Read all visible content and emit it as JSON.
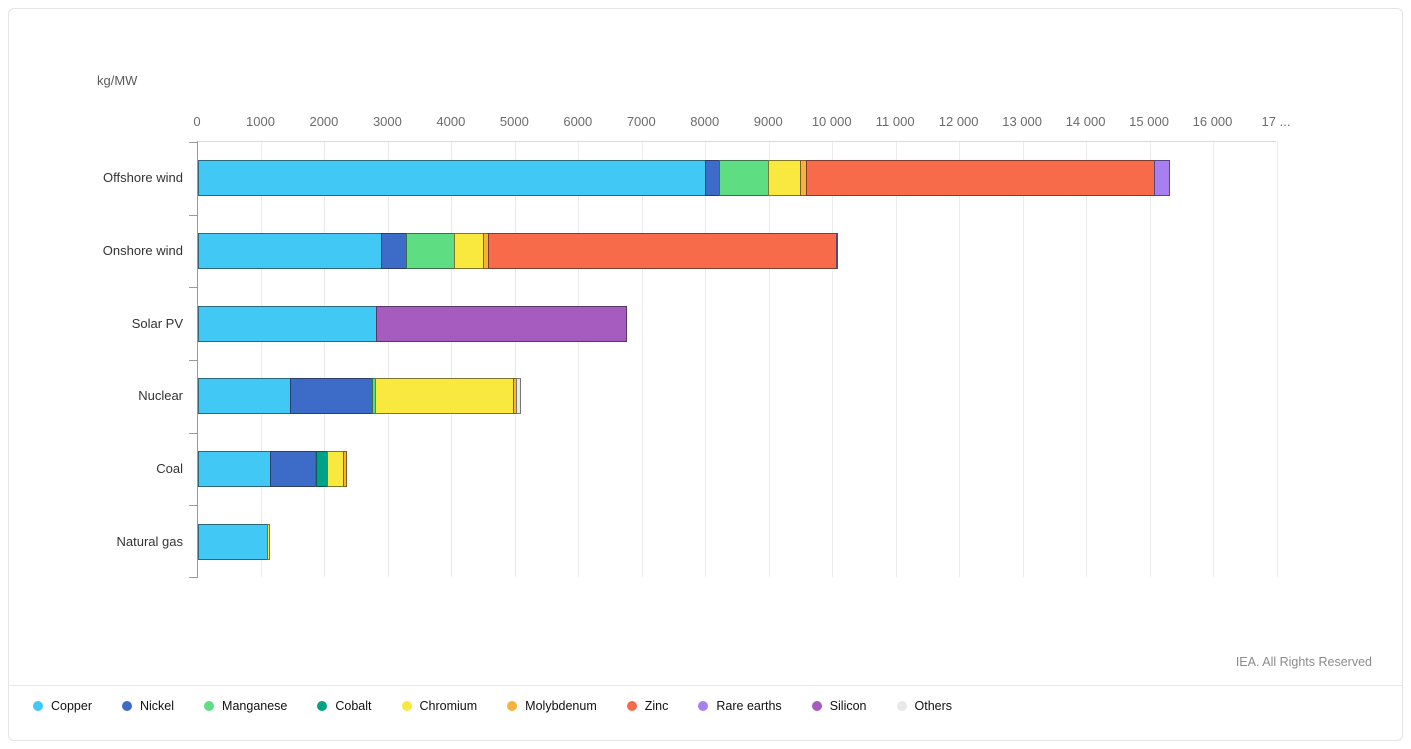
{
  "chart": {
    "unit_label": "kg/MW",
    "footer": "IEA. All Rights Reserved",
    "axis": {
      "min": 0,
      "max": 17000,
      "tick_interval": 1000,
      "ticks": [
        {
          "value": 0,
          "label": "0"
        },
        {
          "value": 1000,
          "label": "1000"
        },
        {
          "value": 2000,
          "label": "2000"
        },
        {
          "value": 3000,
          "label": "3000"
        },
        {
          "value": 4000,
          "label": "4000"
        },
        {
          "value": 5000,
          "label": "5000"
        },
        {
          "value": 6000,
          "label": "6000"
        },
        {
          "value": 7000,
          "label": "7000"
        },
        {
          "value": 8000,
          "label": "8000"
        },
        {
          "value": 9000,
          "label": "9000"
        },
        {
          "value": 10000,
          "label": "10 000"
        },
        {
          "value": 11000,
          "label": "11 000"
        },
        {
          "value": 12000,
          "label": "12 000"
        },
        {
          "value": 13000,
          "label": "13 000"
        },
        {
          "value": 14000,
          "label": "14 000"
        },
        {
          "value": 15000,
          "label": "15 000"
        },
        {
          "value": 16000,
          "label": "16 000"
        },
        {
          "value": 17000,
          "label": "17 ..."
        }
      ]
    }
  },
  "chart_data": {
    "type": "bar",
    "orientation": "horizontal",
    "stacked": true,
    "title": "",
    "xlabel": "kg/MW",
    "ylabel": "",
    "xlim": [
      0,
      17000
    ],
    "grid": true,
    "legend_position": "bottom",
    "categories": [
      "Offshore wind",
      "Onshore wind",
      "Solar PV",
      "Nuclear",
      "Coal",
      "Natural gas"
    ],
    "series": [
      {
        "name": "Copper",
        "color": "#41c8f4",
        "values": [
          8000,
          2900,
          2822,
          1473,
          1150,
          1100
        ]
      },
      {
        "name": "Nickel",
        "color": "#3c6cc8",
        "values": [
          240,
          404,
          0,
          1297,
          721,
          0
        ]
      },
      {
        "name": "Manganese",
        "color": "#5fdd82",
        "values": [
          790,
          780,
          0,
          60,
          5,
          0
        ]
      },
      {
        "name": "Cobalt",
        "color": "#00a287",
        "values": [
          0,
          0,
          0,
          0,
          201,
          0
        ]
      },
      {
        "name": "Chromium",
        "color": "#f9e93f",
        "values": [
          525,
          470,
          0,
          2190,
          254,
          48
        ]
      },
      {
        "name": "Molybdenum",
        "color": "#f6b23c",
        "values": [
          109,
          99,
          0,
          70,
          66,
          0
        ]
      },
      {
        "name": "Zinc",
        "color": "#f76a4a",
        "values": [
          5500,
          5500,
          0,
          0,
          0,
          0
        ]
      },
      {
        "name": "Rare earths",
        "color": "#a87ff0",
        "values": [
          239,
          14,
          0,
          0,
          0,
          0
        ]
      },
      {
        "name": "Silicon",
        "color": "#a55cbe",
        "values": [
          0,
          0,
          3948,
          0,
          0,
          0
        ]
      },
      {
        "name": "Others",
        "color": "#e8e8e8",
        "values": [
          0,
          0,
          0,
          80,
          0,
          0
        ]
      }
    ]
  }
}
